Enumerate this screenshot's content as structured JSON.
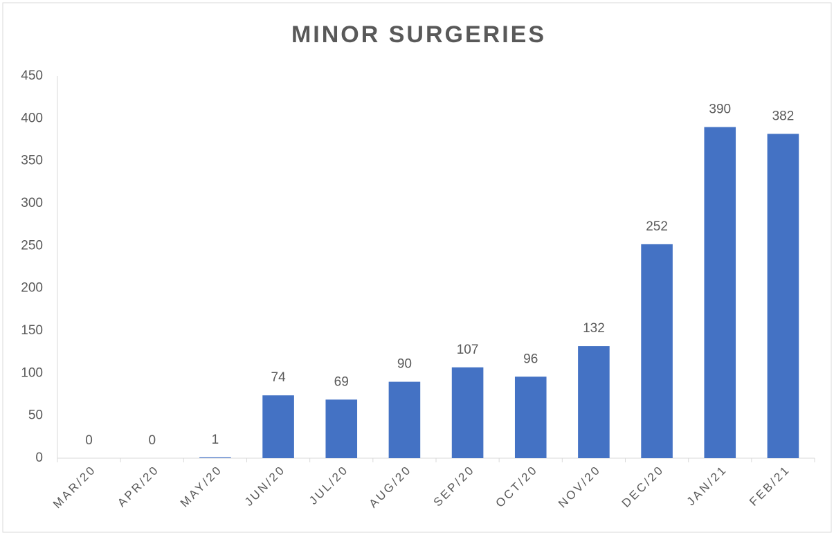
{
  "chart_data": {
    "type": "bar",
    "title": "MINOR SURGERIES",
    "categories": [
      "MAR/20",
      "APR/20",
      "MAY/20",
      "JUN/20",
      "JUL/20",
      "AUG/20",
      "SEP/20",
      "OCT/20",
      "NOV/20",
      "DEC/20",
      "JAN/21",
      "FEB/21"
    ],
    "values": [
      0,
      0,
      1,
      74,
      69,
      90,
      107,
      96,
      132,
      252,
      390,
      382
    ],
    "color": "#4472c4",
    "ylim": [
      0,
      450
    ],
    "yticks": [
      0,
      50,
      100,
      150,
      200,
      250,
      300,
      350,
      400,
      450
    ],
    "grid": false
  }
}
